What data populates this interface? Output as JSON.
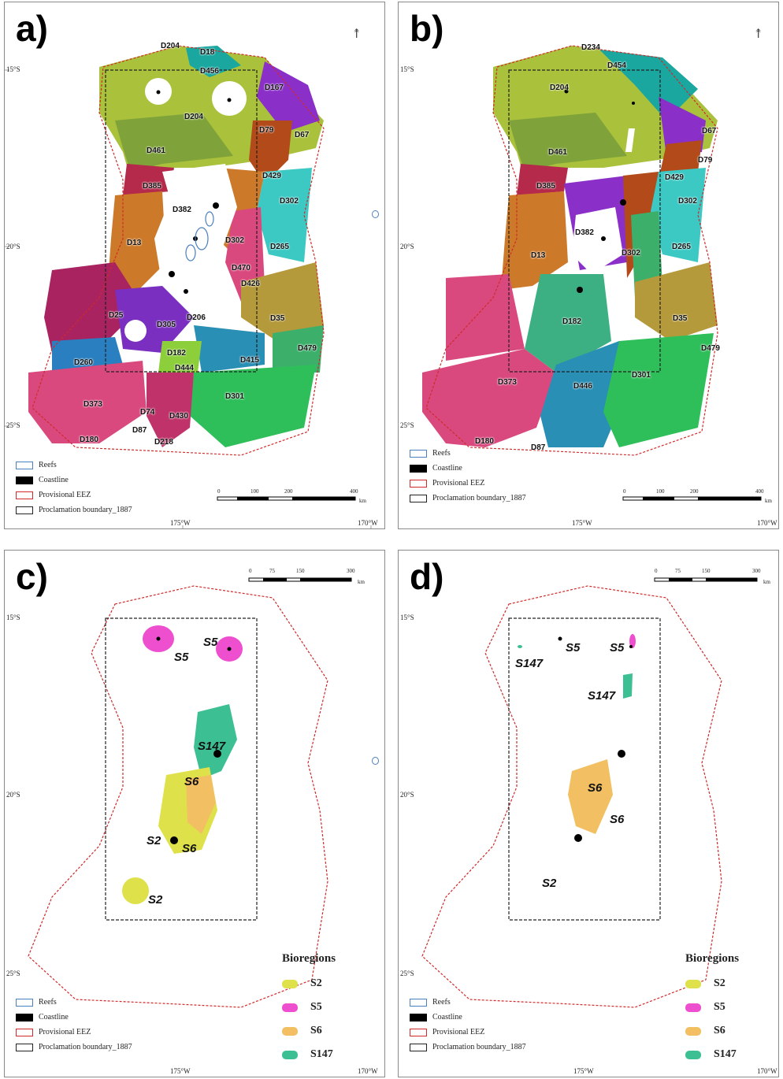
{
  "panels": [
    {
      "letter": "a)",
      "lat_labels": [
        "15°S",
        "20°S",
        "25°S"
      ],
      "lon_labels": [
        "175°W",
        "170°W"
      ]
    },
    {
      "letter": "b)",
      "lat_labels": [
        "15°S",
        "20°S",
        "25°S"
      ],
      "lon_labels": [
        "175°W",
        "170°W"
      ]
    },
    {
      "letter": "c)",
      "lat_labels": [
        "15°S",
        "20°S",
        "25°S"
      ],
      "lon_labels": [
        "175°W",
        "170°W"
      ]
    },
    {
      "letter": "d)",
      "lat_labels": [
        "15°S",
        "20°S",
        "25°S"
      ],
      "lon_labels": [
        "175°W",
        "170°W"
      ]
    }
  ],
  "legend": {
    "reefs": "Reefs",
    "coastline": "Coastline",
    "eez": "Provisional EEZ",
    "proclamation": "Proclamation boundary_1887"
  },
  "scalebar": {
    "labels": [
      "0",
      "100",
      "200",
      "400"
    ],
    "unit": "km",
    "labels_small": [
      "0",
      "75",
      "150",
      "300"
    ]
  },
  "bioregions": {
    "title": "Bioregions",
    "items": [
      {
        "label": "S2",
        "color": "#dfe14a"
      },
      {
        "label": "S5",
        "color": "#ee4fcf"
      },
      {
        "label": "S6",
        "color": "#f2c062"
      },
      {
        "label": "S147",
        "color": "#3cbf92"
      }
    ]
  },
  "map_a_labels": [
    "D204",
    "D18",
    "D456",
    "D167",
    "D79",
    "D67",
    "D204",
    "D461",
    "D429",
    "D385",
    "D302",
    "D382",
    "D265",
    "D13",
    "D302",
    "D470",
    "D426",
    "D25",
    "D305",
    "D206",
    "D35",
    "D479",
    "D260",
    "D182",
    "D444",
    "D415",
    "D373",
    "D301",
    "D74",
    "D430",
    "D87",
    "D218",
    "D180"
  ],
  "map_b_labels": [
    "D234",
    "D454",
    "D204",
    "D67",
    "D79",
    "D461",
    "D429",
    "D385",
    "D302",
    "D382",
    "D302",
    "D265",
    "D13",
    "D182",
    "D35",
    "D479",
    "D373",
    "D446",
    "D301",
    "D180",
    "D87"
  ],
  "map_c_labels": [
    "S5",
    "S5",
    "S147",
    "S6",
    "S2",
    "S6",
    "S2"
  ],
  "map_d_labels": [
    "S5",
    "S5",
    "S147",
    "S147",
    "S6",
    "S6",
    "S2"
  ],
  "colors": {
    "olive": "#a9c13b",
    "darkolive": "#7fa33a",
    "teal": "#1aa7a0",
    "purple": "#8b2fc9",
    "orange": "#cc7a2a",
    "rust": "#b24a1a",
    "crimson": "#b5294a",
    "cyan": "#3cc9c4",
    "magenta": "#c0336a",
    "pink": "#d9497e",
    "mustard": "#b59a3b",
    "green": "#2fbf5a",
    "blue": "#2a7fc0",
    "steel": "#2a8fb5",
    "violet": "#7a2fc0",
    "lime": "#8ccf3a"
  }
}
